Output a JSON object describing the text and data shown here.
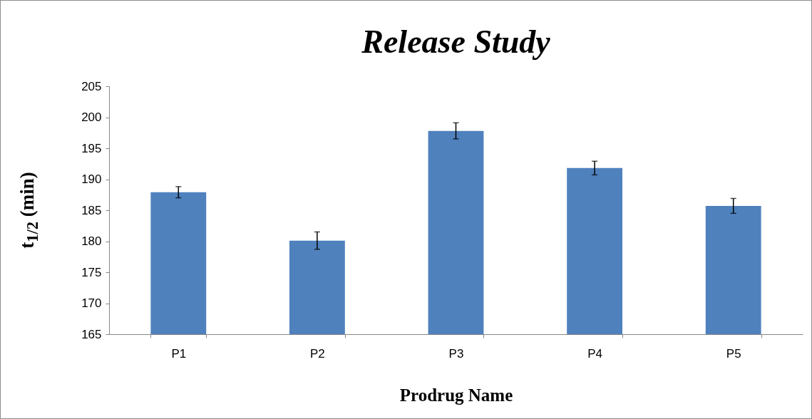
{
  "chart_data": {
    "type": "bar",
    "title": "Release Study",
    "xlabel": "Prodrug Name",
    "ylabel": "t$_{1/2}$ (min)",
    "categories": [
      "P1",
      "P2",
      "P3",
      "P4",
      "P5"
    ],
    "values": [
      187.9,
      180.1,
      197.8,
      191.8,
      185.7
    ],
    "errors": [
      0.9,
      1.4,
      1.3,
      1.1,
      1.2
    ],
    "color": "#4f81bd",
    "ylim": [
      165,
      205
    ],
    "yticks": [
      165,
      170,
      175,
      180,
      185,
      190,
      195,
      200,
      205
    ],
    "grid": false
  }
}
